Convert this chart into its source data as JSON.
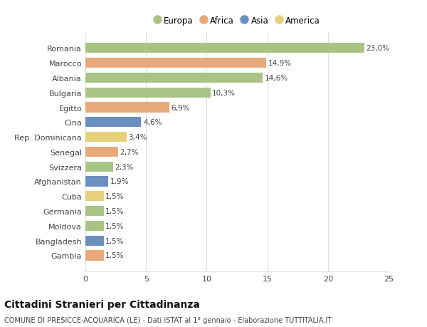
{
  "categories": [
    "Romania",
    "Marocco",
    "Albania",
    "Bulgaria",
    "Egitto",
    "Cina",
    "Rep. Dominicana",
    "Senegal",
    "Svizzera",
    "Afghanistan",
    "Cuba",
    "Germania",
    "Moldova",
    "Bangladesh",
    "Gambia"
  ],
  "values": [
    23.0,
    14.9,
    14.6,
    10.3,
    6.9,
    4.6,
    3.4,
    2.7,
    2.3,
    1.9,
    1.5,
    1.5,
    1.5,
    1.5,
    1.5
  ],
  "labels": [
    "23,0%",
    "14,9%",
    "14,6%",
    "10,3%",
    "6,9%",
    "4,6%",
    "3,4%",
    "2,7%",
    "2,3%",
    "1,9%",
    "1,5%",
    "1,5%",
    "1,5%",
    "1,5%",
    "1,5%"
  ],
  "continents": [
    "Europa",
    "Africa",
    "Europa",
    "Europa",
    "Africa",
    "Asia",
    "America",
    "Africa",
    "Europa",
    "Asia",
    "America",
    "Europa",
    "Europa",
    "Asia",
    "Africa"
  ],
  "continent_colors": {
    "Europa": "#a8c484",
    "Africa": "#e8a97a",
    "Asia": "#6b8fbe",
    "America": "#e8cf7a"
  },
  "legend_order": [
    "Europa",
    "Africa",
    "Asia",
    "America"
  ],
  "xlim": [
    0,
    25
  ],
  "xticks": [
    0,
    5,
    10,
    15,
    20,
    25
  ],
  "title": "Cittadini Stranieri per Cittadinanza",
  "subtitle": "COMUNE DI PRESICCE-ACQUARICA (LE) - Dati ISTAT al 1° gennaio - Elaborazione TUTTITALIA.IT",
  "bg_color": "#ffffff",
  "bar_height": 0.68,
  "grid_color": "#e0e0e0",
  "label_fontsize": 7.5,
  "ytick_fontsize": 8,
  "xtick_fontsize": 8,
  "title_fontsize": 10,
  "subtitle_fontsize": 7
}
